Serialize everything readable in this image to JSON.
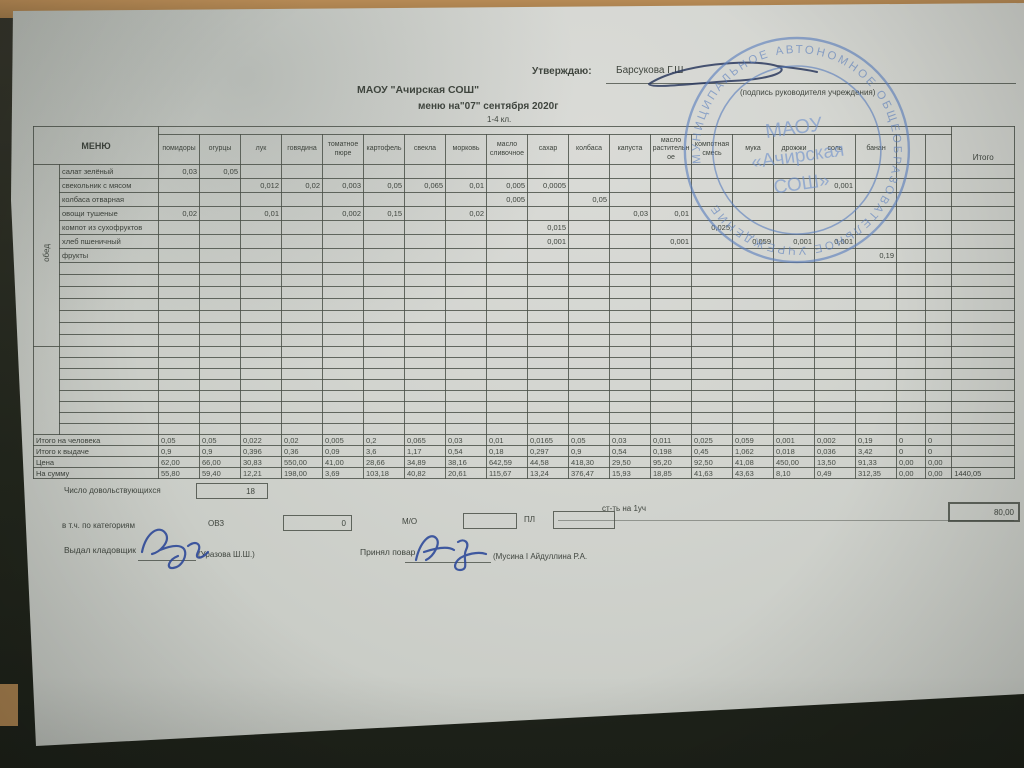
{
  "header": {
    "approve_label": "Утверждаю:",
    "approver_name": "Барсукова Г.Ш",
    "signature_caption": "(подпись руководителя учреждения)",
    "org_title": "МАОУ \"Ачирская СОШ\"",
    "menu_title": "меню на\"07\" сентября 2020г",
    "grade_label": "1-4 кл."
  },
  "stamp": {
    "ring_text": "МУНИЦИПАЛЬНОЕ АВТОНОМНОЕ ОБЩЕОБРАЗОВАТЕЛЬНОЕ УЧРЕЖДЕНИЕ",
    "line1": "МАОУ",
    "line2": "«Ачирская",
    "line3": "СОШ»",
    "color": "#5b7fbe"
  },
  "table": {
    "menu_header": "МЕНЮ",
    "total_header": "Итого",
    "section1_label": "обед",
    "columns": [
      "помидоры",
      "огурцы",
      "лук",
      "говядина",
      "томатное пюре",
      "картофель",
      "свекла",
      "морковь",
      "масло сливочное",
      "сахар",
      "колбаса",
      "капуста",
      "масло растительное",
      "компотная смесь",
      "мука",
      "дрожжи",
      "соль",
      "банан",
      "",
      ""
    ],
    "menu_rows": [
      {
        "name": "салат зелёный",
        "values": [
          "0,03",
          "0,05",
          "",
          "",
          "",
          "",
          "",
          "",
          "",
          "",
          "",
          "",
          "",
          "",
          "",
          "",
          "",
          "",
          "",
          ""
        ]
      },
      {
        "name": "свекольник с мясом",
        "values": [
          "",
          "",
          "0,012",
          "0,02",
          "0,003",
          "0,05",
          "0,065",
          "0,01",
          "0,005",
          "0,0005",
          "",
          "",
          "",
          "",
          "",
          "",
          "0,001",
          "",
          "",
          ""
        ]
      },
      {
        "name": "колбаса отварная",
        "values": [
          "",
          "",
          "",
          "",
          "",
          "",
          "",
          "",
          "0,005",
          "",
          "0,05",
          "",
          "",
          "",
          "",
          "",
          "",
          "",
          "",
          ""
        ]
      },
      {
        "name": "овощи тушеные",
        "values": [
          "0,02",
          "",
          "0,01",
          "",
          "0,002",
          "0,15",
          "",
          "0,02",
          "",
          "",
          "",
          "0,03",
          "0,01",
          "",
          "",
          "",
          "",
          "",
          "",
          ""
        ]
      },
      {
        "name": "компот из сухофруктов",
        "values": [
          "",
          "",
          "",
          "",
          "",
          "",
          "",
          "",
          "",
          "0,015",
          "",
          "",
          "",
          "0,025",
          "",
          "",
          "",
          "",
          "",
          ""
        ]
      },
      {
        "name": "хлеб пшеничный",
        "values": [
          "",
          "",
          "",
          "",
          "",
          "",
          "",
          "",
          "",
          "0,001",
          "",
          "",
          "0,001",
          "",
          "0,059",
          "0,001",
          "0,001",
          "",
          "",
          ""
        ]
      },
      {
        "name": "фрукты",
        "values": [
          "",
          "",
          "",
          "",
          "",
          "",
          "",
          "",
          "",
          "",
          "",
          "",
          "",
          "",
          "",
          "",
          "",
          "0,19",
          "",
          ""
        ]
      }
    ],
    "empty_rows_section1": 7,
    "empty_rows_section2": 8,
    "summary_rows": [
      {
        "label": "Итого на человека",
        "values": [
          "0,05",
          "0,05",
          "0,022",
          "0,02",
          "0,005",
          "0,2",
          "0,065",
          "0,03",
          "0,01",
          "0,0165",
          "0,05",
          "0,03",
          "0,011",
          "0,025",
          "0,059",
          "0,001",
          "0,002",
          "0,19",
          "0",
          "0"
        ],
        "total": ""
      },
      {
        "label": "Итого к выдаче",
        "values": [
          "0,9",
          "0,9",
          "0,396",
          "0,36",
          "0,09",
          "3,6",
          "1,17",
          "0,54",
          "0,18",
          "0,297",
          "0,9",
          "0,54",
          "0,198",
          "0,45",
          "1,062",
          "0,018",
          "0,036",
          "3,42",
          "0",
          "0"
        ],
        "total": ""
      },
      {
        "label": "Цена",
        "values": [
          "62,00",
          "66,00",
          "30,83",
          "550,00",
          "41,00",
          "28,66",
          "34,89",
          "38,16",
          "642,59",
          "44,58",
          "418,30",
          "29,50",
          "95,20",
          "92,50",
          "41,08",
          "450,00",
          "13,50",
          "91,33",
          "0,00",
          "0,00"
        ],
        "total": ""
      },
      {
        "label": "На сумму",
        "values": [
          "55,80",
          "59,40",
          "12,21",
          "198,00",
          "3,69",
          "103,18",
          "40,82",
          "20,61",
          "115,67",
          "13,24",
          "376,47",
          "15,93",
          "18,85",
          "41,63",
          "43,63",
          "8,10",
          "0,49",
          "312,35",
          "0,00",
          "0,00"
        ],
        "total": "1440,05"
      }
    ]
  },
  "footer": {
    "count_label": "Число довольствующихся",
    "count_value": "18",
    "cost_label": "ст-ть на 1уч",
    "cost_value": "80,00",
    "categories_label": "в т.ч. по категориям",
    "cat1_label": "ОВЗ",
    "cat1_value": "0",
    "cat2_label": "М/О",
    "cat2_value": "",
    "cat3_label": "ПЛ",
    "cat3_value": "",
    "issued_label": "Выдал кладовщик",
    "issued_name": "(Уразова Ш.Ш.)",
    "received_label": "Принял повар",
    "received_name": "(Мусина I Айдуллина Р.А."
  }
}
